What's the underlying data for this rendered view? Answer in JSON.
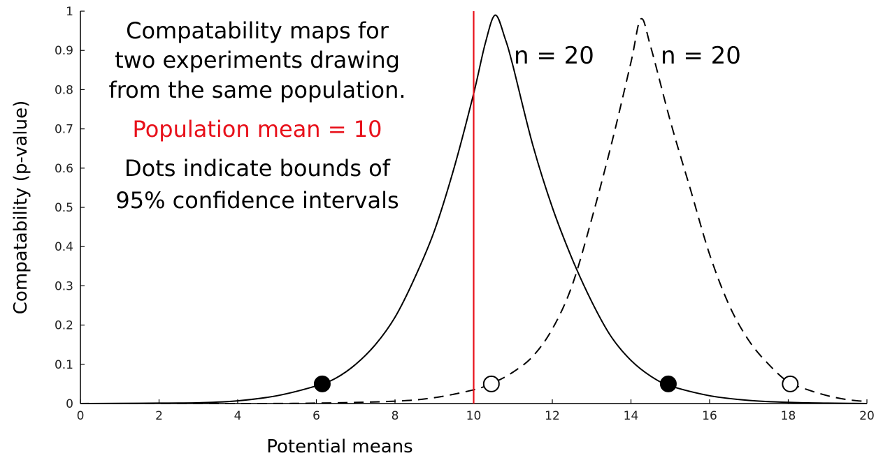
{
  "chart_data": {
    "type": "line",
    "xlabel": "Potential means",
    "ylabel": "Compatability (p-value)",
    "xlim": [
      0,
      20
    ],
    "ylim": [
      0,
      1
    ],
    "xticks": [
      0,
      2,
      4,
      6,
      8,
      10,
      12,
      14,
      16,
      18,
      20
    ],
    "yticks": [
      0,
      0.1,
      0.2,
      0.3,
      0.4,
      0.5,
      0.6,
      0.7,
      0.8,
      0.9,
      1
    ],
    "ytick_labels": [
      "0",
      "0.1",
      "0.2",
      "0.3",
      "0.4",
      "0.5",
      "0.6",
      "0.7",
      "0.8",
      "0.9",
      "1"
    ],
    "grid": false,
    "annotation_lines": [
      "Compatability maps for",
      "two experiments drawing",
      "from the same population."
    ],
    "population_mean_label": "Population mean = 10",
    "dots_note_lines": [
      "Dots indicate bounds of",
      "95% confidence intervals"
    ],
    "population_mean": 10,
    "population_mean_color": "#e8101a",
    "series": [
      {
        "name": "n = 20",
        "style": "solid",
        "peak": 10.55,
        "ci_bounds": [
          6.15,
          14.95
        ],
        "marker": "filled-circle",
        "points": [
          [
            0,
            0.0
          ],
          [
            1,
            0.0005
          ],
          [
            2,
            0.001
          ],
          [
            3,
            0.002
          ],
          [
            4,
            0.007
          ],
          [
            5,
            0.02
          ],
          [
            6,
            0.045
          ],
          [
            6.5,
            0.065
          ],
          [
            7,
            0.1
          ],
          [
            7.5,
            0.15
          ],
          [
            8,
            0.22
          ],
          [
            8.5,
            0.32
          ],
          [
            9,
            0.44
          ],
          [
            9.5,
            0.6
          ],
          [
            10,
            0.79
          ],
          [
            10.3,
            0.92
          ],
          [
            10.55,
            0.99
          ],
          [
            10.8,
            0.93
          ],
          [
            11,
            0.86
          ],
          [
            11.5,
            0.66
          ],
          [
            12,
            0.5
          ],
          [
            12.5,
            0.37
          ],
          [
            13,
            0.26
          ],
          [
            13.5,
            0.17
          ],
          [
            14,
            0.11
          ],
          [
            14.5,
            0.07
          ],
          [
            15,
            0.045
          ],
          [
            16,
            0.02
          ],
          [
            17,
            0.008
          ],
          [
            18,
            0.003
          ],
          [
            19,
            0.001
          ],
          [
            20,
            0.0
          ]
        ]
      },
      {
        "name": "n = 20",
        "style": "dashed",
        "peak": 14.25,
        "ci_bounds": [
          10.45,
          18.05
        ],
        "marker": "open-circle",
        "points": [
          [
            0,
            0.0
          ],
          [
            4,
            0.0
          ],
          [
            6,
            0.001
          ],
          [
            8,
            0.006
          ],
          [
            9,
            0.015
          ],
          [
            10,
            0.035
          ],
          [
            10.5,
            0.053
          ],
          [
            11,
            0.08
          ],
          [
            11.5,
            0.12
          ],
          [
            12,
            0.19
          ],
          [
            12.5,
            0.3
          ],
          [
            13,
            0.47
          ],
          [
            13.5,
            0.66
          ],
          [
            14,
            0.87
          ],
          [
            14.25,
            0.98
          ],
          [
            14.5,
            0.91
          ],
          [
            15,
            0.72
          ],
          [
            15.5,
            0.55
          ],
          [
            16,
            0.38
          ],
          [
            16.5,
            0.25
          ],
          [
            17,
            0.16
          ],
          [
            17.5,
            0.1
          ],
          [
            18,
            0.055
          ],
          [
            18.5,
            0.035
          ],
          [
            19,
            0.02
          ],
          [
            19.5,
            0.01
          ],
          [
            20,
            0.005
          ]
        ]
      }
    ]
  }
}
